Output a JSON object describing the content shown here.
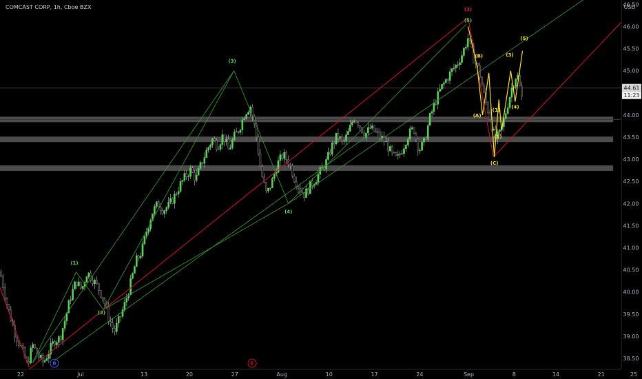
{
  "header": {
    "symbol_text": "COMCAST CORP, 1h, Cboe BZX",
    "currency": "USD"
  },
  "price_badge": {
    "value": "44.61",
    "countdown": "11:23"
  },
  "colors": {
    "up": "#5bd35b",
    "down": "#1a1a1a",
    "wick": "#c8c8c8",
    "green_line": "#3a8f3a",
    "red_line": "#c0182a",
    "yellow": "#f5e13b",
    "zone": "#8a8a8a"
  },
  "chart_data": {
    "type": "line",
    "title": "COMCAST CORP, 1h, Cboe BZX",
    "xlabel": "",
    "ylabel": "USD",
    "ylim": [
      38.25,
      46.6
    ],
    "y_ticks": [
      38.5,
      39.0,
      39.5,
      40.0,
      40.5,
      41.0,
      41.5,
      42.0,
      42.5,
      43.0,
      43.5,
      44.0,
      44.5,
      45.0,
      45.5,
      46.0,
      46.5
    ],
    "x_ticks": [
      {
        "label": "22",
        "t": 0
      },
      {
        "label": "Jul",
        "t": 6.6
      },
      {
        "label": "13",
        "t": 13.6
      },
      {
        "label": "20",
        "t": 18.6
      },
      {
        "label": "27",
        "t": 23.6
      },
      {
        "label": "Aug",
        "t": 28.8
      },
      {
        "label": "10",
        "t": 34.0
      },
      {
        "label": "17",
        "t": 39.0
      },
      {
        "label": "24",
        "t": 44.0
      },
      {
        "label": "Sep",
        "t": 49.4
      },
      {
        "label": "8",
        "t": 54.4
      },
      {
        "label": "14",
        "t": 59.0
      },
      {
        "label": "21",
        "t": 64.0
      },
      {
        "label": "25",
        "t": 67.6
      }
    ],
    "price_path": [
      [
        0.0,
        40.45
      ],
      [
        0.8,
        39.7
      ],
      [
        1.6,
        39.1
      ],
      [
        2.4,
        38.7
      ],
      [
        3.0,
        38.35
      ],
      [
        3.6,
        38.8
      ],
      [
        4.2,
        38.55
      ],
      [
        4.8,
        38.4
      ],
      [
        5.4,
        38.65
      ],
      [
        6.0,
        38.9
      ],
      [
        6.6,
        38.95
      ],
      [
        7.2,
        39.4
      ],
      [
        7.8,
        39.9
      ],
      [
        8.4,
        40.25
      ],
      [
        9.0,
        40.05
      ],
      [
        9.6,
        40.45
      ],
      [
        10.2,
        40.3
      ],
      [
        10.8,
        40.1
      ],
      [
        11.4,
        39.85
      ],
      [
        12.0,
        39.4
      ],
      [
        12.6,
        39.1
      ],
      [
        13.2,
        39.4
      ],
      [
        13.8,
        39.75
      ],
      [
        14.4,
        40.2
      ],
      [
        15.0,
        40.7
      ],
      [
        15.6,
        40.9
      ],
      [
        16.2,
        41.4
      ],
      [
        16.8,
        41.8
      ],
      [
        17.4,
        42.0
      ],
      [
        18.0,
        41.85
      ],
      [
        18.6,
        41.95
      ],
      [
        19.2,
        42.15
      ],
      [
        19.8,
        42.4
      ],
      [
        20.4,
        42.6
      ],
      [
        21.0,
        42.75
      ],
      [
        21.6,
        42.55
      ],
      [
        22.2,
        42.9
      ],
      [
        22.8,
        43.2
      ],
      [
        23.4,
        43.45
      ],
      [
        24.0,
        43.3
      ],
      [
        24.6,
        43.55
      ],
      [
        25.2,
        43.2
      ],
      [
        25.8,
        43.5
      ],
      [
        26.4,
        43.7
      ],
      [
        27.0,
        44.05
      ],
      [
        27.6,
        44.2
      ],
      [
        28.2,
        43.6
      ],
      [
        28.8,
        42.7
      ],
      [
        29.4,
        42.2
      ],
      [
        30.0,
        42.5
      ],
      [
        30.6,
        42.9
      ],
      [
        31.2,
        43.1
      ],
      [
        31.8,
        42.95
      ],
      [
        32.4,
        42.6
      ],
      [
        33.0,
        42.35
      ],
      [
        33.6,
        42.2
      ],
      [
        34.2,
        42.4
      ],
      [
        34.8,
        42.55
      ],
      [
        35.4,
        42.75
      ],
      [
        36.0,
        42.95
      ],
      [
        36.6,
        43.3
      ],
      [
        37.2,
        43.55
      ],
      [
        37.8,
        43.35
      ],
      [
        38.4,
        43.6
      ],
      [
        39.0,
        43.95
      ],
      [
        39.6,
        43.8
      ],
      [
        40.2,
        43.55
      ],
      [
        40.8,
        43.7
      ],
      [
        41.4,
        43.6
      ],
      [
        42.0,
        43.5
      ],
      [
        42.6,
        43.35
      ],
      [
        43.2,
        43.1
      ],
      [
        43.8,
        43.0
      ],
      [
        44.4,
        43.25
      ],
      [
        45.0,
        43.55
      ],
      [
        45.6,
        43.7
      ],
      [
        46.2,
        43.2
      ],
      [
        46.8,
        43.4
      ],
      [
        47.4,
        43.95
      ],
      [
        48.0,
        44.3
      ],
      [
        48.6,
        44.6
      ],
      [
        49.2,
        44.8
      ],
      [
        49.8,
        45.0
      ],
      [
        50.4,
        45.15
      ],
      [
        51.0,
        45.4
      ],
      [
        51.6,
        45.75
      ],
      [
        52.2,
        45.3
      ],
      [
        52.8,
        45.0
      ],
      [
        53.4,
        44.4
      ],
      [
        54.0,
        43.95
      ],
      [
        54.6,
        43.45
      ],
      [
        55.2,
        43.6
      ],
      [
        55.8,
        44.1
      ],
      [
        56.4,
        44.6
      ],
      [
        57.0,
        44.95
      ],
      [
        57.6,
        44.3
      ]
    ],
    "zones": [
      {
        "y": 43.9,
        "t_end": 67.6
      },
      {
        "y": 43.45,
        "t_end": 67.6
      },
      {
        "y": 42.8,
        "t_end": 67.6
      }
    ],
    "horizontal_line": 44.61,
    "green_lines": [
      [
        [
          3.6,
          38.4
        ],
        [
          8.4,
          40.45
        ]
      ],
      [
        [
          8.4,
          40.45
        ],
        [
          11.4,
          39.6
        ]
      ],
      [
        [
          11.4,
          39.6
        ],
        [
          25.8,
          45.0
        ]
      ],
      [
        [
          25.8,
          45.0
        ],
        [
          31.8,
          42.0
        ]
      ],
      [
        [
          31.8,
          42.0
        ],
        [
          51.4,
          46.05
        ]
      ],
      [
        [
          3.6,
          38.4
        ],
        [
          25.8,
          45.0
        ]
      ],
      [
        [
          11.4,
          39.6
        ],
        [
          31.8,
          42.0
        ]
      ],
      [
        [
          31.8,
          42.0
        ],
        [
          68.5,
          47.2
        ]
      ],
      [
        [
          6.0,
          38.45
        ],
        [
          41.0,
          43.6
        ]
      ]
    ],
    "red_lines": [
      [
        [
          3.2,
          38.25
        ],
        [
          51.6,
          46.2
        ]
      ],
      [
        [
          51.6,
          46.2
        ],
        [
          54.4,
          43.05
        ]
      ],
      [
        [
          54.4,
          43.05
        ],
        [
          68.5,
          46.1
        ]
      ],
      [
        [
          0.0,
          40.1
        ],
        [
          3.2,
          38.3
        ]
      ]
    ],
    "yellow_path": [
      [
        51.6,
        46.0
      ],
      [
        52.6,
        45.1
      ],
      [
        53.2,
        44.0
      ],
      [
        53.9,
        44.95
      ],
      [
        54.5,
        43.05
      ],
      [
        55.0,
        44.35
      ],
      [
        55.3,
        43.65
      ],
      [
        56.3,
        45.0
      ],
      [
        56.8,
        44.3
      ],
      [
        57.6,
        45.45
      ]
    ],
    "wave_labels": [
      {
        "text": "(1)",
        "t": 8.2,
        "y": 40.62,
        "color": "green"
      },
      {
        "text": "(2)",
        "t": 11.2,
        "y": 39.5,
        "color": "green"
      },
      {
        "text": "(3)",
        "t": 25.6,
        "y": 45.18,
        "color": "green"
      },
      {
        "text": "(4)",
        "t": 31.8,
        "y": 41.78,
        "color": "green"
      },
      {
        "text": "(5)",
        "t": 51.6,
        "y": 46.1,
        "color": "green"
      },
      {
        "text": "(3)",
        "t": 51.6,
        "y": 46.35,
        "color": "red"
      },
      {
        "text": "(B)",
        "t": 52.8,
        "y": 45.3,
        "color": "yellow"
      },
      {
        "text": "(A)",
        "t": 52.6,
        "y": 43.95,
        "color": "yellow"
      },
      {
        "text": "(1)",
        "t": 54.7,
        "y": 44.08,
        "color": "yellow"
      },
      {
        "text": "(2)",
        "t": 54.9,
        "y": 43.48,
        "color": "yellow"
      },
      {
        "text": "(C)",
        "t": 54.5,
        "y": 42.88,
        "color": "yellow"
      },
      {
        "text": "(3)",
        "t": 56.2,
        "y": 45.32,
        "color": "yellow"
      },
      {
        "text": "(4)",
        "t": 56.8,
        "y": 44.15,
        "color": "yellow"
      },
      {
        "text": "(5)",
        "t": 57.8,
        "y": 45.7,
        "color": "yellow"
      }
    ],
    "circle_labels": [
      {
        "text": "B",
        "t": 6.0,
        "y": 38.45,
        "color": "#3b5bdb"
      },
      {
        "text": "E",
        "t": 27.8,
        "y": 38.45,
        "color": "#c0182a"
      }
    ]
  }
}
